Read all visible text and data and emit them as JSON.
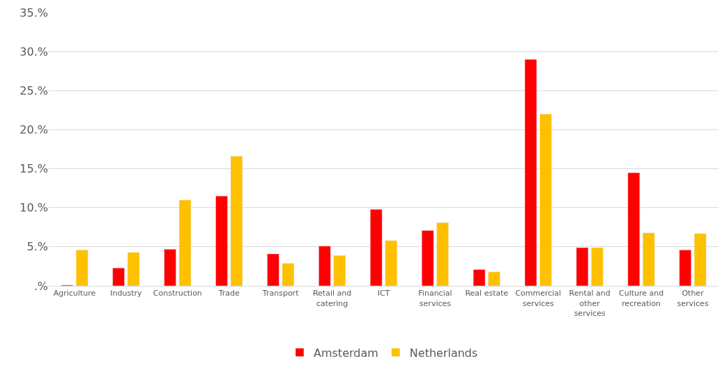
{
  "chart_data": {
    "type": "bar",
    "categories": [
      "Agriculture",
      "Industry",
      "Construction",
      "Trade",
      "Transport",
      "Retail and catering",
      "ICT",
      "Financial services",
      "Real estate",
      "Commercial services",
      "Rental and other services",
      "Culture and recreation",
      "Other services"
    ],
    "series": [
      {
        "name": "Amsterdam",
        "color": "#ff0000",
        "values": [
          0.1,
          2.3,
          4.7,
          11.5,
          4.1,
          5.1,
          9.8,
          7.1,
          2.1,
          29.0,
          4.9,
          14.5,
          4.6
        ]
      },
      {
        "name": "Netherlands",
        "color": "#ffc000",
        "values": [
          4.6,
          4.3,
          11.0,
          16.6,
          2.9,
          3.9,
          5.8,
          8.1,
          1.8,
          22.0,
          4.9,
          6.8,
          6.7
        ]
      }
    ],
    "ylim": [
      0,
      35
    ],
    "yticks": [
      {
        "value": 0,
        "label": ".%"
      },
      {
        "value": 5,
        "label": "5.%"
      },
      {
        "value": 10,
        "label": "10.%"
      },
      {
        "value": 15,
        "label": "15.%"
      },
      {
        "value": 20,
        "label": "20.%"
      },
      {
        "value": 25,
        "label": "25.%"
      },
      {
        "value": 30,
        "label": "30.%"
      },
      {
        "value": 35,
        "label": "35.%"
      }
    ],
    "grid": "y",
    "legend": "bottom"
  }
}
